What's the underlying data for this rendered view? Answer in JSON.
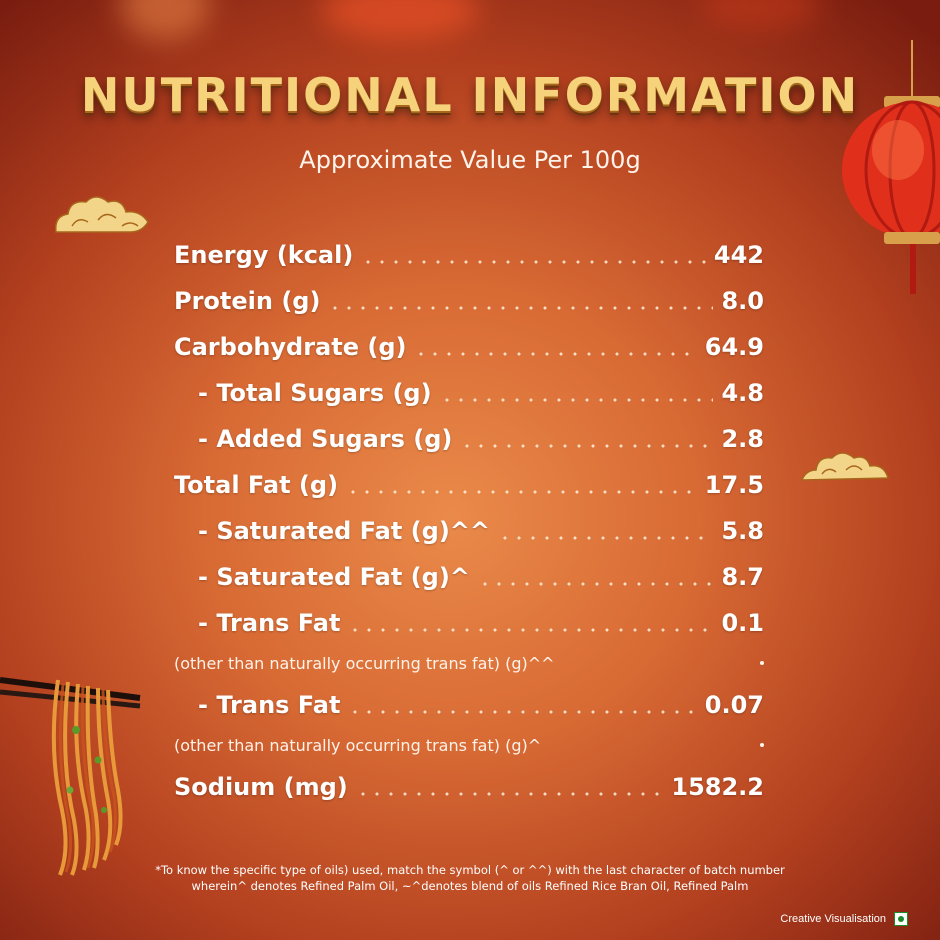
{
  "title": "NUTRITIONAL INFORMATION",
  "subtitle": "Approximate Value Per 100g",
  "rows": [
    {
      "label": "Energy (kcal)",
      "value": "442"
    },
    {
      "label": "Protein (g)",
      "value": "8.0"
    },
    {
      "label": "Carbohydrate (g)",
      "value": "64.9"
    },
    {
      "label": "- Total Sugars (g)",
      "value": "4.8"
    },
    {
      "label": "- Added Sugars (g)",
      "value": "2.8"
    },
    {
      "label": "Total Fat (g)",
      "value": "17.5"
    },
    {
      "label": "- Saturated Fat (g)^^",
      "value": "5.8"
    },
    {
      "label": "- Saturated Fat (g)^",
      "value": "8.7"
    },
    {
      "label": "- Trans Fat",
      "value": "0.1"
    },
    {
      "label": "- Trans Fat",
      "value": "0.07"
    },
    {
      "label": "Sodium (mg)",
      "value": "1582.2"
    }
  ],
  "notes": [
    "(other than naturally occurring trans fat) (g)^^",
    "(other than naturally occurring trans fat) (g)^"
  ],
  "footer": {
    "line1": "*To know the specific type of oils) used, match the symbol (^ or ^^) with the last character of batch number",
    "line2": "wherein^ denotes Refined Palm Oil, ~^denotes blend of oils Refined Rice Bran Oil, Refined Palm"
  },
  "badge": "Creative Visualisation",
  "icons": [
    "cloud-icon",
    "lantern-icon",
    "noodles-chopsticks-icon",
    "veg-mark-icon"
  ],
  "colors": {
    "accent_gold": "#f6d27a",
    "veg_green": "#1a8a2a",
    "bg_center": "#ea8a4a",
    "bg_edge": "#7a1d10"
  }
}
